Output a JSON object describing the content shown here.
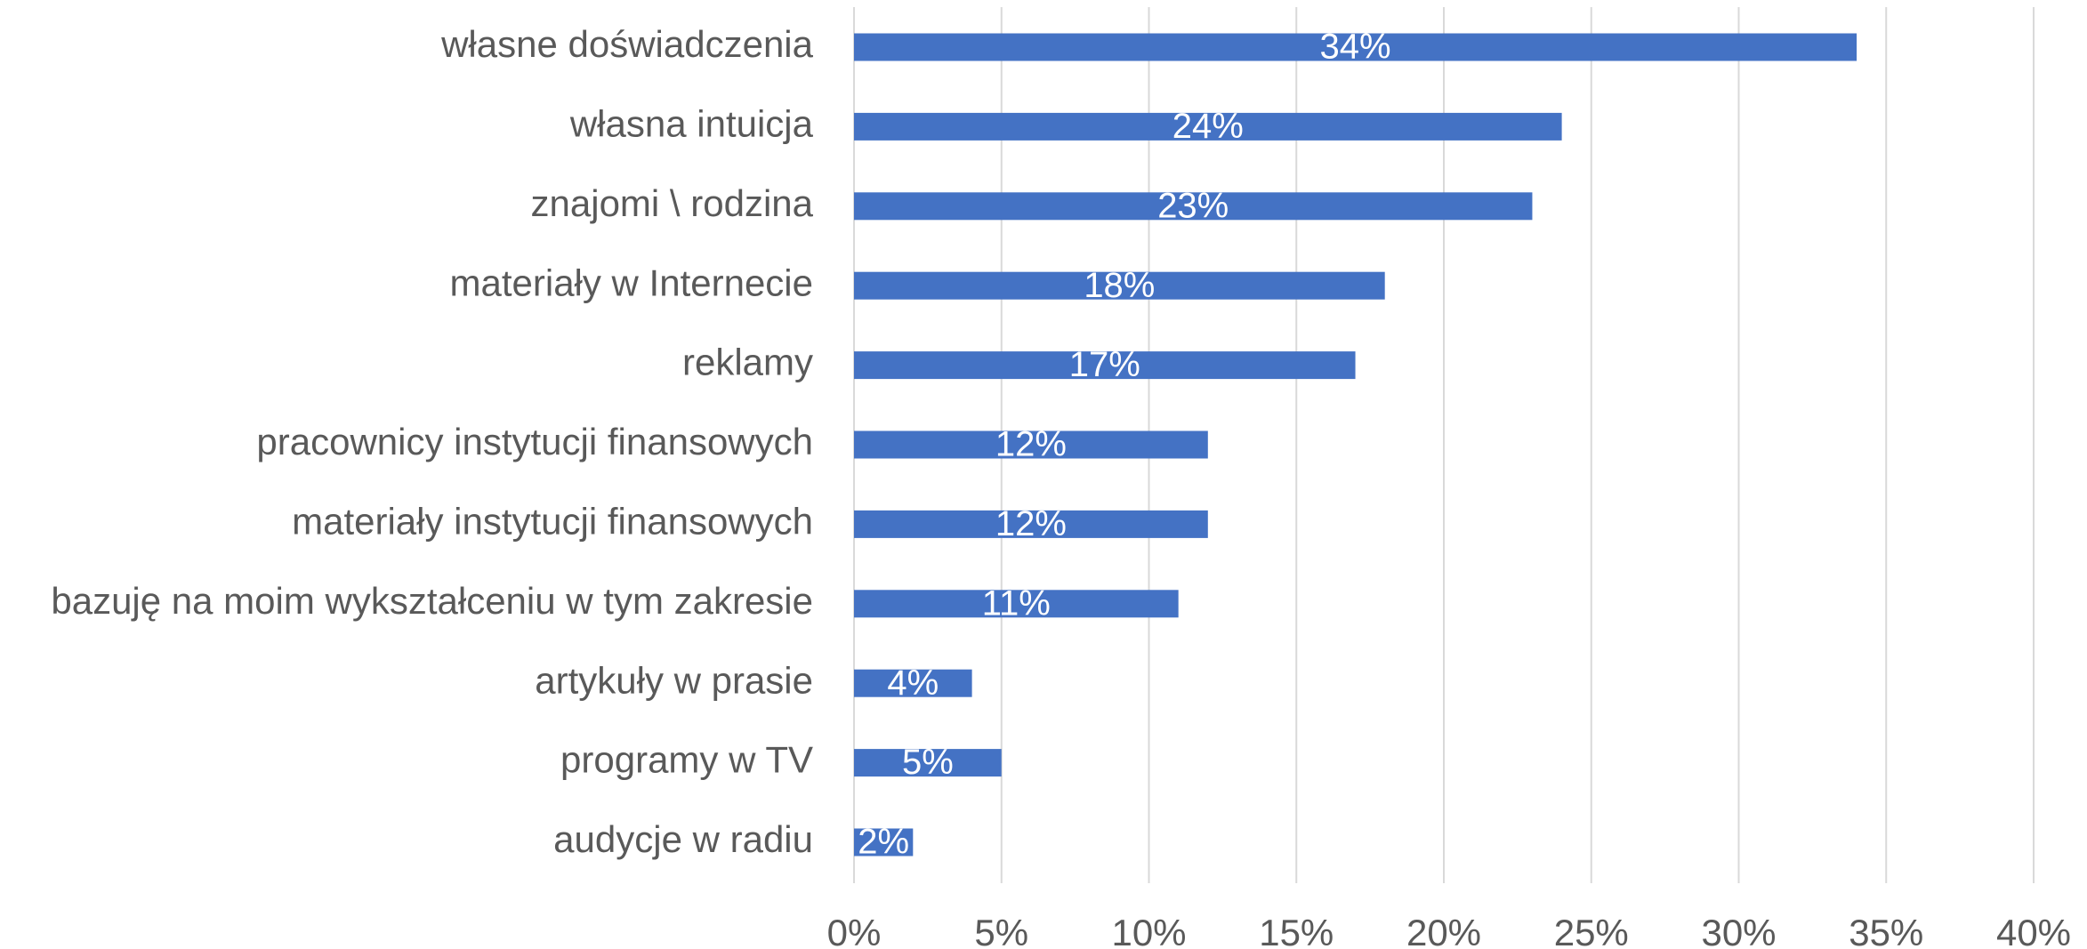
{
  "chart_data": {
    "type": "barh",
    "color": "#4472c4",
    "grid": true,
    "categories": [
      "własne doświadczenia",
      "własna intuicja",
      "znajomi \\ rodzina",
      "materiały w Internecie",
      "reklamy",
      "pracownicy instytucji finansowych",
      "materiały instytucji finansowych",
      "bazuję na moim wykształceniu w tym zakresie",
      "artykuły w prasie",
      "programy w TV",
      "audycje w radiu"
    ],
    "values": [
      34,
      24,
      23,
      18,
      17,
      12,
      12,
      11,
      4,
      5,
      2
    ],
    "value_labels": [
      "34%",
      "24%",
      "23%",
      "18%",
      "17%",
      "12%",
      "12%",
      "11%",
      "4%",
      "5%",
      "2%"
    ],
    "xlim": [
      0,
      40
    ],
    "xticks": [
      {
        "value": 0,
        "label": "0%"
      },
      {
        "value": 5,
        "label": "5%"
      },
      {
        "value": 10,
        "label": "10%"
      },
      {
        "value": 15,
        "label": "15%"
      },
      {
        "value": 20,
        "label": "20%"
      },
      {
        "value": 25,
        "label": "25%"
      },
      {
        "value": 30,
        "label": "30%"
      },
      {
        "value": 35,
        "label": "35%"
      },
      {
        "value": 40,
        "label": "40%"
      }
    ]
  }
}
